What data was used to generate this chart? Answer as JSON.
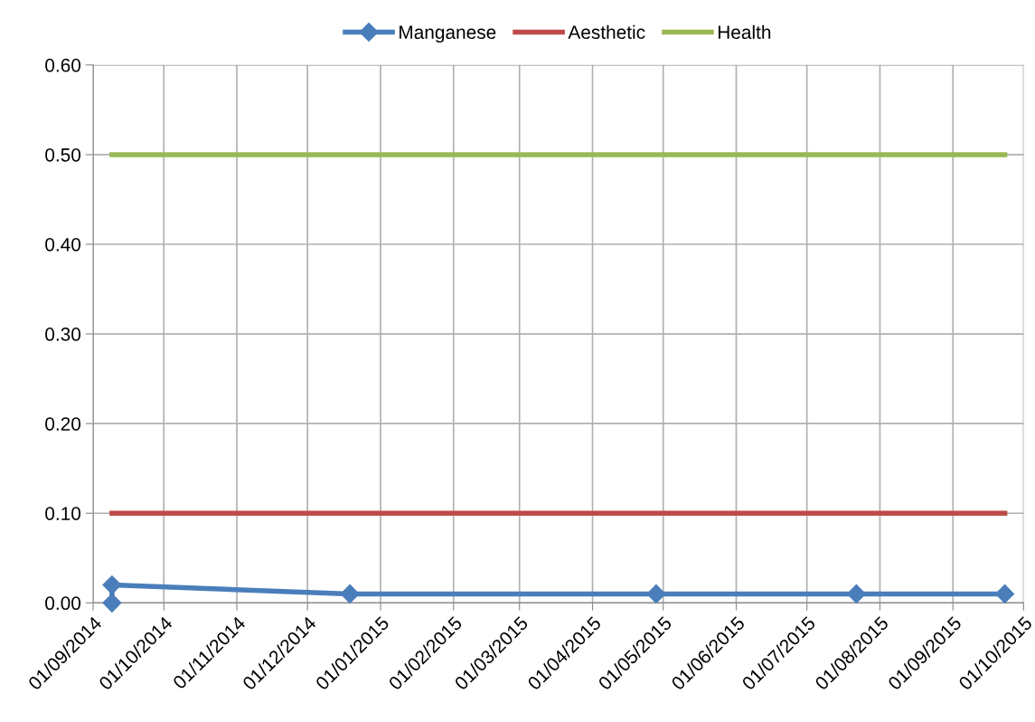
{
  "chart_data": {
    "type": "line",
    "series": [
      {
        "name": "Manganese",
        "color": "#4a7ebb",
        "marker": "diamond",
        "x": [
          "2014-09-09",
          "2014-09-09",
          "2014-12-19",
          "2015-04-28",
          "2015-07-22",
          "2015-09-23"
        ],
        "values": [
          0.0,
          0.02,
          0.01,
          0.01,
          0.01,
          0.01
        ]
      },
      {
        "name": "Aesthetic",
        "color": "#be4b48",
        "marker": "none",
        "x": [
          "2014-09-09",
          "2015-09-23"
        ],
        "values": [
          0.1,
          0.1
        ]
      },
      {
        "name": "Health",
        "color": "#98b954",
        "marker": "none",
        "x": [
          "2014-09-09",
          "2015-09-23"
        ],
        "values": [
          0.5,
          0.5
        ]
      }
    ],
    "xlim": [
      "2014-09-01",
      "2015-10-01"
    ],
    "xticks": [
      {
        "value": "2014-09-01",
        "label": "01/09/2014"
      },
      {
        "value": "2014-10-01",
        "label": "01/10/2014"
      },
      {
        "value": "2014-11-01",
        "label": "01/11/2014"
      },
      {
        "value": "2014-12-01",
        "label": "01/12/2014"
      },
      {
        "value": "2015-01-01",
        "label": "01/01/2015"
      },
      {
        "value": "2015-02-01",
        "label": "01/02/2015"
      },
      {
        "value": "2015-03-01",
        "label": "01/03/2015"
      },
      {
        "value": "2015-04-01",
        "label": "01/04/2015"
      },
      {
        "value": "2015-05-01",
        "label": "01/05/2015"
      },
      {
        "value": "2015-06-01",
        "label": "01/06/2015"
      },
      {
        "value": "2015-07-01",
        "label": "01/07/2015"
      },
      {
        "value": "2015-08-01",
        "label": "01/08/2015"
      },
      {
        "value": "2015-09-01",
        "label": "01/09/2015"
      },
      {
        "value": "2015-10-01",
        "label": "01/10/2015"
      }
    ],
    "ylim": [
      0,
      0.6
    ],
    "yticks": [
      {
        "value": 0,
        "label": "0.00"
      },
      {
        "value": 0.1,
        "label": "0.10"
      },
      {
        "value": 0.2,
        "label": "0.20"
      },
      {
        "value": 0.3,
        "label": "0.30"
      },
      {
        "value": 0.4,
        "label": "0.40"
      },
      {
        "value": 0.5,
        "label": "0.50"
      },
      {
        "value": 0.6,
        "label": "0.60"
      }
    ],
    "grid": true,
    "legend": "top",
    "line_style": "solid"
  }
}
